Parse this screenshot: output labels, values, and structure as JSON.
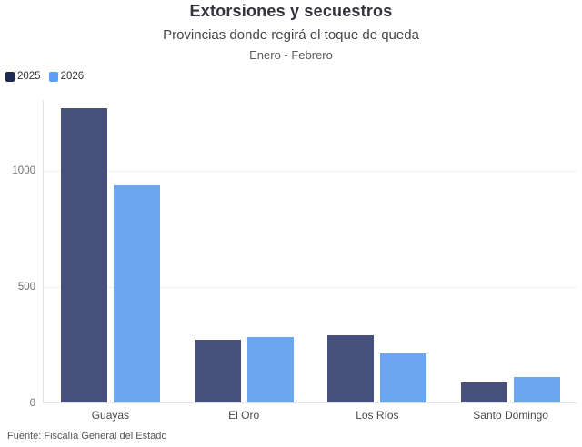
{
  "header": {
    "title": "Extorsiones y secuestros",
    "subtitle": "Provincias donde regirá el toque de queda",
    "period": "Enero - Febrero"
  },
  "legend": [
    {
      "label": "2025",
      "color": "#202b52"
    },
    {
      "label": "2026",
      "color": "#5b9ef5"
    }
  ],
  "source": "Fuente: Fiscalía General del Estado",
  "chart_data": {
    "type": "bar",
    "title": "Extorsiones y secuestros",
    "subtitle": "Provincias donde regirá el toque de queda",
    "period_label": "Enero - Febrero",
    "categories": [
      "Guayas",
      "El Oro",
      "Los Ríos",
      "Santo Domingo"
    ],
    "series": [
      {
        "name": "2025",
        "color": "#46507a",
        "values": [
          1265,
          270,
          290,
          85
        ]
      },
      {
        "name": "2026",
        "color": "#6ca6f0",
        "values": [
          935,
          280,
          210,
          110
        ]
      }
    ],
    "xlabel": "",
    "ylabel": "",
    "ylim": [
      0,
      1305
    ],
    "yticks": [
      0,
      500,
      1000
    ],
    "grid": true,
    "legend_position": "top-left",
    "source": "Fuente: Fiscalía General del Estado"
  }
}
